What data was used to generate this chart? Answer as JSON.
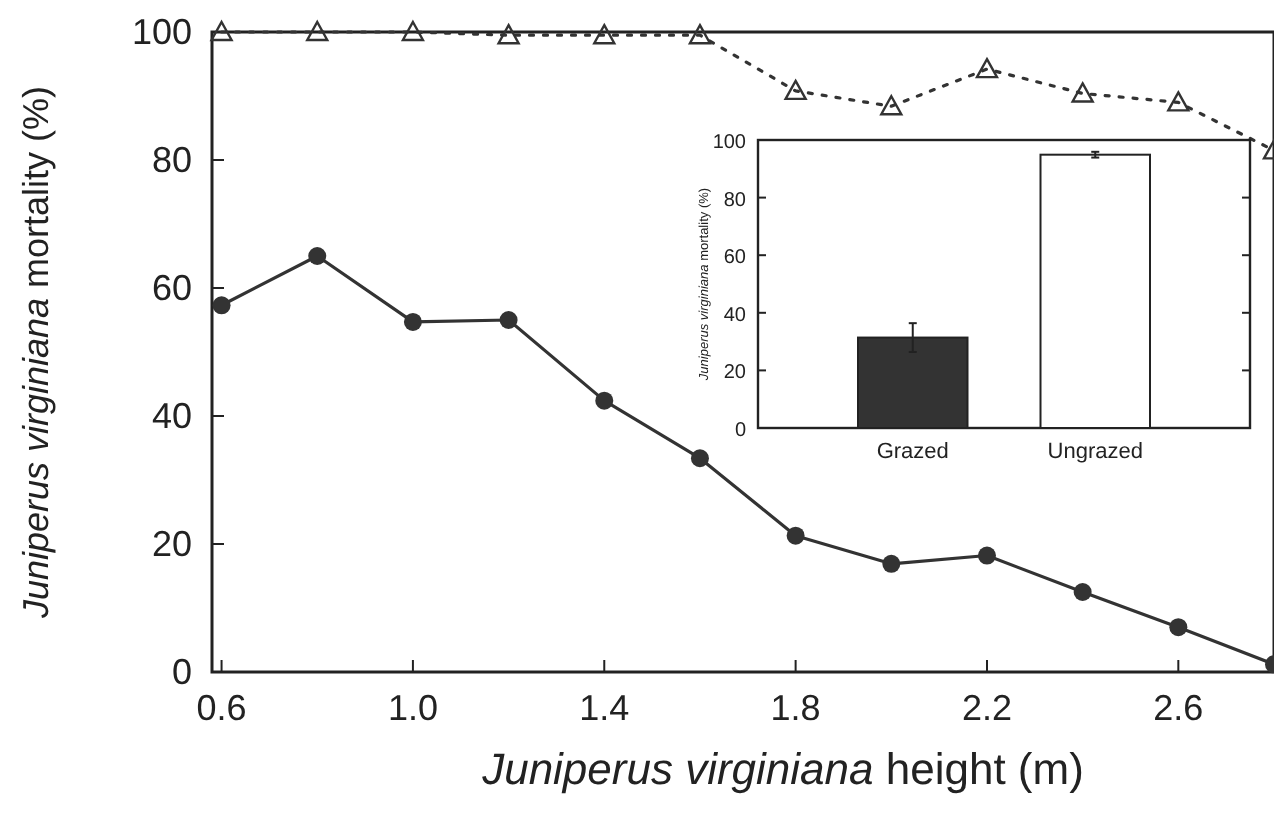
{
  "chart_data": [
    {
      "type": "line",
      "xlabel": "Juniperus virginiana height (m)",
      "ylabel": "Juniperus virginiana mortality (%)",
      "x": [
        0.6,
        0.8,
        1.0,
        1.2,
        1.4,
        1.6,
        1.8,
        2.0,
        2.2,
        2.4,
        2.6,
        2.8
      ],
      "series": [
        {
          "color": "#333333",
          "marker": "triangle",
          "line_style": "dotted",
          "values": [
            100,
            100,
            100,
            99.5,
            99.5,
            99.5,
            90.8,
            88.4,
            94.2,
            90.4,
            89,
            81.5
          ]
        },
        {
          "color": "#333333",
          "marker": "circle",
          "line_style": "solid",
          "values": [
            57.3,
            65,
            54.7,
            55,
            42.4,
            33.4,
            21.3,
            16.9,
            18.2,
            12.5,
            7,
            1.2
          ]
        }
      ],
      "xlim": [
        0.58,
        2.8
      ],
      "xticks": [
        0.6,
        {
          "value": 1,
          "label": "1.0"
        },
        1.4,
        1.8,
        2.2,
        2.6
      ],
      "ylim": [
        0,
        100
      ],
      "yticks": [
        0,
        20,
        40,
        60,
        80,
        100
      ]
    },
    {
      "type": "bar",
      "ylabel": "Juniperus virginiana mortality (%)",
      "categories": [
        "Grazed",
        "Ungrazed"
      ],
      "values": [
        31.4,
        94.9
      ],
      "colors": [
        "#333333",
        "#ffffff"
      ],
      "errors": [
        5,
        1
      ],
      "ylim": [
        0,
        100
      ],
      "yticks": [
        0,
        20,
        40,
        60,
        80,
        100
      ]
    }
  ]
}
